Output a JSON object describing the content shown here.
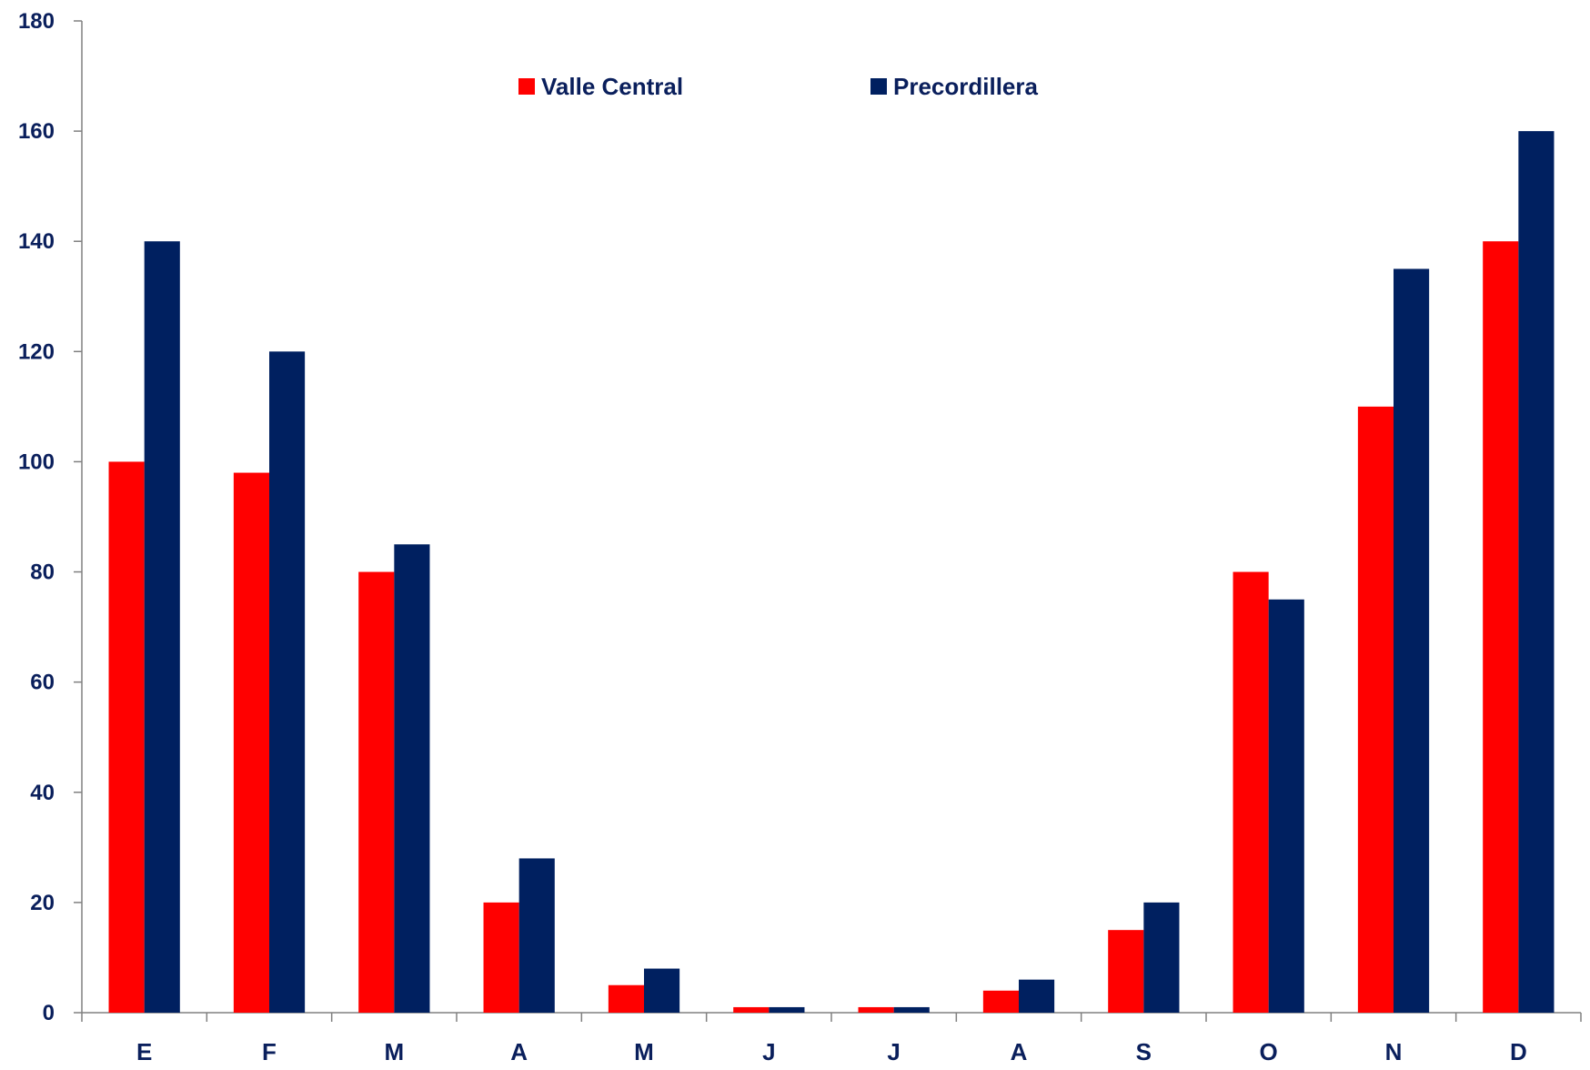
{
  "chart_data": {
    "type": "bar",
    "title": "",
    "xlabel": "",
    "ylabel": "",
    "categories": [
      "E",
      "F",
      "M",
      "A",
      "M",
      "J",
      "J",
      "A",
      "S",
      "O",
      "N",
      "D"
    ],
    "series": [
      {
        "name": "Valle Central",
        "color": "#ff0000",
        "values": [
          100,
          98,
          80,
          20,
          5,
          1,
          1,
          4,
          15,
          80,
          110,
          140
        ]
      },
      {
        "name": "Precordillera",
        "color": "#002060",
        "values": [
          140,
          120,
          85,
          28,
          8,
          1,
          1,
          6,
          20,
          75,
          135,
          160
        ]
      }
    ],
    "ylim": [
      0,
      180
    ],
    "yticks": [
      0,
      20,
      40,
      60,
      80,
      100,
      120,
      140,
      160,
      180
    ],
    "grid": false,
    "legend": "top-center"
  }
}
